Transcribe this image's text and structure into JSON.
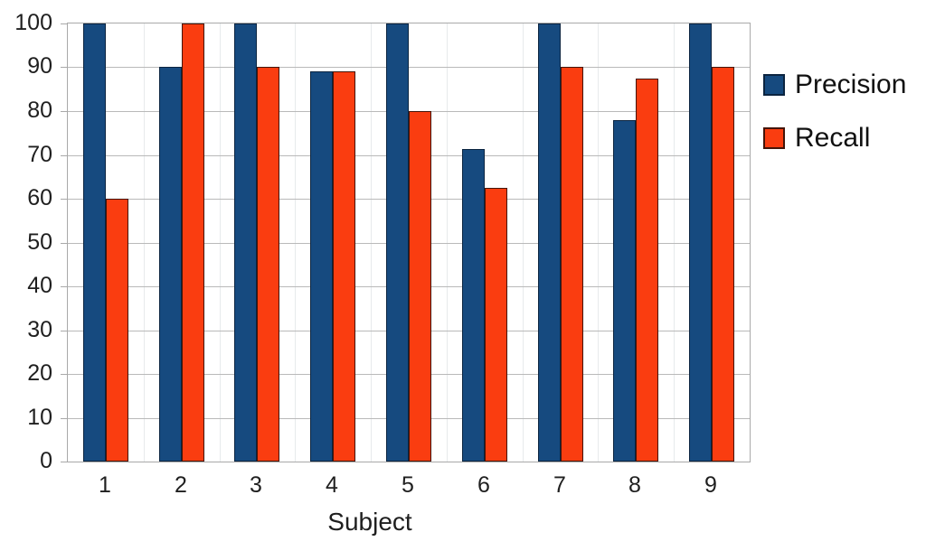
{
  "chart_data": {
    "type": "bar",
    "title": "",
    "xlabel": "Subject",
    "ylabel": "",
    "categories": [
      "1",
      "2",
      "3",
      "4",
      "5",
      "6",
      "7",
      "8",
      "9"
    ],
    "series": [
      {
        "name": "Precision",
        "color": "#164A7F",
        "border_color": "#0B2440",
        "values": [
          100,
          90,
          100,
          89,
          100,
          71.4,
          100,
          78,
          100
        ]
      },
      {
        "name": "Recall",
        "color": "#FA3D10",
        "border_color": "#441408",
        "values": [
          60,
          100,
          90,
          89,
          80,
          62.5,
          90,
          87.5,
          90
        ]
      }
    ],
    "ylim": [
      0,
      100
    ],
    "ytick_step": 10,
    "yticks": [
      0,
      10,
      20,
      30,
      40,
      50,
      60,
      70,
      80,
      90,
      100
    ],
    "grid": "horizontal major gridlines, faint vertical category separators",
    "legend_position": "right"
  }
}
